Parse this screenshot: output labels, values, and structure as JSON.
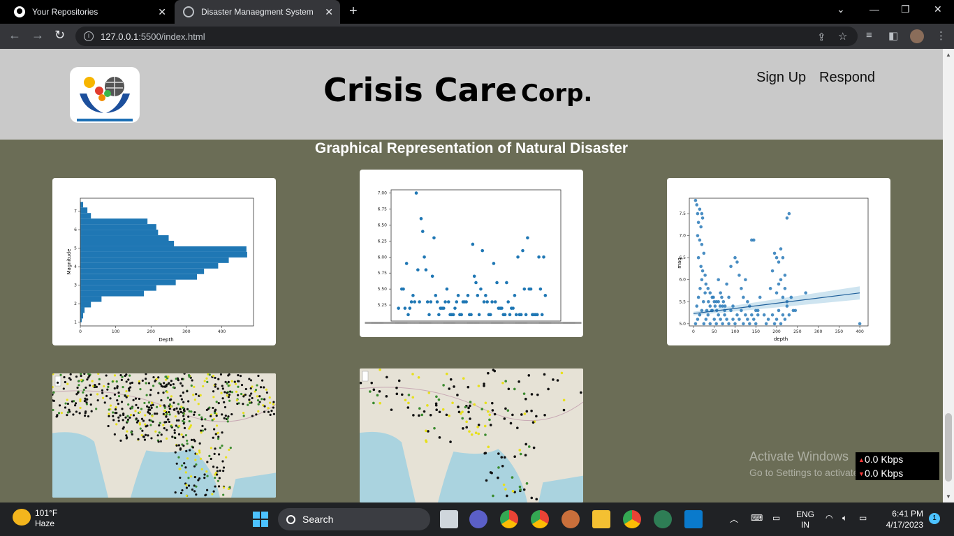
{
  "browser": {
    "tabs": [
      {
        "title": "Your Repositories"
      },
      {
        "title": "Disaster Manaegment System"
      }
    ],
    "url_host": "127.0.0.1",
    "url_rest": ":5500/index.html"
  },
  "page": {
    "brand_main": "Crisis Care",
    "brand_suffix": "Corp.",
    "nav": [
      "Sign Up",
      "Respond"
    ],
    "section_heading": "Graphical Representation of Natural Disaster"
  },
  "charts": {
    "hist": {
      "xlabel": "Depth",
      "ylabel": "Magnitude"
    },
    "reg": {
      "xlabel": "depth",
      "ylabel": "mag"
    }
  },
  "chart_data": [
    {
      "type": "bar",
      "orientation": "horizontal",
      "xlabel": "Depth",
      "ylabel": "Magnitude",
      "xticks": [
        "0",
        "100",
        "200",
        "300",
        "400"
      ],
      "yticks": [
        "1",
        "2",
        "3",
        "4",
        "5",
        "6",
        "7"
      ],
      "xlim": [
        0,
        490
      ],
      "ylim": [
        0.8,
        7.7
      ],
      "bins": [
        {
          "y0": 1.0,
          "y1": 1.2,
          "x": 4
        },
        {
          "y0": 1.2,
          "y1": 1.5,
          "x": 8
        },
        {
          "y0": 1.5,
          "y1": 1.8,
          "x": 12
        },
        {
          "y0": 1.8,
          "y1": 2.1,
          "x": 30
        },
        {
          "y0": 2.1,
          "y1": 2.4,
          "x": 60
        },
        {
          "y0": 2.4,
          "y1": 2.7,
          "x": 180
        },
        {
          "y0": 2.7,
          "y1": 3.0,
          "x": 215
        },
        {
          "y0": 3.0,
          "y1": 3.3,
          "x": 270
        },
        {
          "y0": 3.3,
          "y1": 3.6,
          "x": 330
        },
        {
          "y0": 3.6,
          "y1": 3.9,
          "x": 350
        },
        {
          "y0": 3.9,
          "y1": 4.2,
          "x": 390
        },
        {
          "y0": 4.2,
          "y1": 4.5,
          "x": 420
        },
        {
          "y0": 4.5,
          "y1": 4.8,
          "x": 472
        },
        {
          "y0": 4.8,
          "y1": 5.1,
          "x": 470
        },
        {
          "y0": 5.1,
          "y1": 5.4,
          "x": 265
        },
        {
          "y0": 5.4,
          "y1": 5.7,
          "x": 250
        },
        {
          "y0": 5.7,
          "y1": 6.0,
          "x": 220
        },
        {
          "y0": 6.0,
          "y1": 6.3,
          "x": 215
        },
        {
          "y0": 6.3,
          "y1": 6.6,
          "x": 190
        },
        {
          "y0": 6.6,
          "y1": 6.9,
          "x": 30
        },
        {
          "y0": 6.9,
          "y1": 7.2,
          "x": 20
        },
        {
          "y0": 7.2,
          "y1": 7.5,
          "x": 8
        }
      ]
    },
    {
      "type": "scatter",
      "yticks": [
        "5.25",
        "5.50",
        "5.75",
        "6.00",
        "6.25",
        "6.50",
        "6.75",
        "7.00"
      ],
      "ylim": [
        5.0,
        7.05
      ],
      "xlim": [
        0,
        100
      ],
      "points": [
        [
          2,
          5.2
        ],
        [
          4,
          5.5
        ],
        [
          5,
          5.5
        ],
        [
          6,
          5.2
        ],
        [
          7,
          5.9
        ],
        [
          8,
          5.1
        ],
        [
          9,
          5.2
        ],
        [
          10,
          5.3
        ],
        [
          11,
          5.4
        ],
        [
          12,
          5.3
        ],
        [
          13,
          7.0
        ],
        [
          14,
          5.8
        ],
        [
          15,
          5.3
        ],
        [
          16,
          6.6
        ],
        [
          17,
          6.4
        ],
        [
          18,
          6.0
        ],
        [
          19,
          5.8
        ],
        [
          20,
          5.3
        ],
        [
          21,
          5.1
        ],
        [
          22,
          5.3
        ],
        [
          23,
          5.7
        ],
        [
          24,
          6.3
        ],
        [
          25,
          5.4
        ],
        [
          26,
          5.3
        ],
        [
          27,
          5.1
        ],
        [
          28,
          5.2
        ],
        [
          29,
          5.2
        ],
        [
          30,
          5.2
        ],
        [
          31,
          5.3
        ],
        [
          32,
          5.5
        ],
        [
          33,
          5.3
        ],
        [
          34,
          5.1
        ],
        [
          35,
          5.1
        ],
        [
          36,
          5.1
        ],
        [
          37,
          5.2
        ],
        [
          38,
          5.3
        ],
        [
          39,
          5.4
        ],
        [
          40,
          5.1
        ],
        [
          41,
          5.1
        ],
        [
          42,
          5.3
        ],
        [
          43,
          5.3
        ],
        [
          44,
          5.3
        ],
        [
          45,
          5.4
        ],
        [
          46,
          5.1
        ],
        [
          47,
          5.1
        ],
        [
          48,
          6.2
        ],
        [
          49,
          5.7
        ],
        [
          50,
          5.6
        ],
        [
          51,
          5.4
        ],
        [
          52,
          5.1
        ],
        [
          53,
          5.5
        ],
        [
          54,
          6.1
        ],
        [
          55,
          5.3
        ],
        [
          56,
          5.4
        ],
        [
          57,
          5.3
        ],
        [
          58,
          5.1
        ],
        [
          59,
          5.1
        ],
        [
          60,
          5.3
        ],
        [
          61,
          5.9
        ],
        [
          62,
          5.3
        ],
        [
          63,
          5.6
        ],
        [
          64,
          5.2
        ],
        [
          65,
          5.2
        ],
        [
          66,
          5.2
        ],
        [
          67,
          5.1
        ],
        [
          68,
          5.1
        ],
        [
          69,
          5.6
        ],
        [
          70,
          5.3
        ],
        [
          71,
          5.1
        ],
        [
          72,
          5.2
        ],
        [
          73,
          5.2
        ],
        [
          74,
          5.4
        ],
        [
          75,
          5.1
        ],
        [
          76,
          6.0
        ],
        [
          77,
          5.1
        ],
        [
          78,
          5.1
        ],
        [
          79,
          6.1
        ],
        [
          80,
          5.5
        ],
        [
          81,
          5.1
        ],
        [
          82,
          6.3
        ],
        [
          83,
          5.5
        ],
        [
          84,
          5.5
        ],
        [
          85,
          5.1
        ],
        [
          86,
          5.1
        ],
        [
          87,
          5.1
        ],
        [
          88,
          5.1
        ],
        [
          89,
          6.0
        ],
        [
          90,
          5.5
        ],
        [
          91,
          5.1
        ],
        [
          92,
          6.0
        ],
        [
          93,
          5.4
        ]
      ]
    },
    {
      "type": "scatter",
      "xlabel": "depth",
      "ylabel": "mag",
      "xticks": [
        "0",
        "50",
        "100",
        "150",
        "200",
        "250",
        "300",
        "350",
        "400"
      ],
      "yticks": [
        "5.0",
        "5.5",
        "6.0",
        "6.5",
        "7.0",
        "7.5"
      ],
      "xlim": [
        -10,
        420
      ],
      "ylim": [
        4.95,
        7.85
      ],
      "regression": {
        "x0": 0,
        "y0": 5.23,
        "x1": 400,
        "y1": 5.7
      },
      "points": [
        [
          5,
          7.8
        ],
        [
          8,
          7.7
        ],
        [
          10,
          7.5
        ],
        [
          12,
          7.3
        ],
        [
          15,
          7.6
        ],
        [
          18,
          7.2
        ],
        [
          20,
          7.5
        ],
        [
          22,
          7.4
        ],
        [
          10,
          7.0
        ],
        [
          15,
          6.9
        ],
        [
          20,
          6.8
        ],
        [
          25,
          6.6
        ],
        [
          12,
          6.5
        ],
        [
          18,
          6.3
        ],
        [
          22,
          6.2
        ],
        [
          28,
          6.1
        ],
        [
          30,
          5.9
        ],
        [
          35,
          5.8
        ],
        [
          40,
          5.7
        ],
        [
          45,
          5.6
        ],
        [
          50,
          5.5
        ],
        [
          55,
          5.5
        ],
        [
          60,
          6.0
        ],
        [
          65,
          5.7
        ],
        [
          70,
          5.4
        ],
        [
          75,
          5.3
        ],
        [
          80,
          5.9
        ],
        [
          85,
          5.6
        ],
        [
          90,
          6.3
        ],
        [
          95,
          5.4
        ],
        [
          100,
          6.5
        ],
        [
          105,
          6.4
        ],
        [
          110,
          6.1
        ],
        [
          115,
          5.8
        ],
        [
          120,
          5.6
        ],
        [
          125,
          6.0
        ],
        [
          130,
          5.5
        ],
        [
          135,
          5.4
        ],
        [
          140,
          6.9
        ],
        [
          145,
          6.9
        ],
        [
          150,
          5.3
        ],
        [
          155,
          5.2
        ],
        [
          160,
          5.6
        ],
        [
          170,
          5.2
        ],
        [
          180,
          5.1
        ],
        [
          185,
          5.8
        ],
        [
          190,
          6.2
        ],
        [
          195,
          6.6
        ],
        [
          200,
          6.5
        ],
        [
          205,
          6.4
        ],
        [
          210,
          6.7
        ],
        [
          215,
          6.5
        ],
        [
          220,
          6.1
        ],
        [
          225,
          7.4
        ],
        [
          230,
          7.5
        ],
        [
          235,
          5.6
        ],
        [
          240,
          5.3
        ],
        [
          245,
          5.3
        ],
        [
          270,
          5.7
        ],
        [
          400,
          5.0
        ],
        [
          5,
          5.0
        ],
        [
          10,
          5.1
        ],
        [
          15,
          5.2
        ],
        [
          20,
          5.3
        ],
        [
          25,
          5.0
        ],
        [
          30,
          5.1
        ],
        [
          35,
          5.2
        ],
        [
          40,
          5.0
        ],
        [
          45,
          5.3
        ],
        [
          50,
          5.1
        ],
        [
          55,
          5.0
        ],
        [
          60,
          5.2
        ],
        [
          65,
          5.1
        ],
        [
          70,
          5.0
        ],
        [
          75,
          5.2
        ],
        [
          80,
          5.1
        ],
        [
          85,
          5.0
        ],
        [
          90,
          5.3
        ],
        [
          95,
          5.1
        ],
        [
          100,
          5.0
        ],
        [
          105,
          5.2
        ],
        [
          110,
          5.1
        ],
        [
          115,
          5.3
        ],
        [
          120,
          5.0
        ],
        [
          125,
          5.2
        ],
        [
          130,
          5.1
        ],
        [
          135,
          5.0
        ],
        [
          140,
          5.2
        ],
        [
          145,
          5.1
        ],
        [
          150,
          5.0
        ],
        [
          155,
          5.3
        ],
        [
          175,
          5.0
        ],
        [
          190,
          5.2
        ],
        [
          195,
          5.0
        ],
        [
          200,
          5.1
        ],
        [
          205,
          5.3
        ],
        [
          210,
          5.0
        ],
        [
          215,
          5.2
        ],
        [
          220,
          5.1
        ],
        [
          225,
          5.4
        ],
        [
          230,
          5.2
        ],
        [
          8,
          5.4
        ],
        [
          12,
          5.6
        ],
        [
          16,
          5.8
        ],
        [
          20,
          6.0
        ],
        [
          24,
          5.5
        ],
        [
          28,
          5.7
        ],
        [
          32,
          5.3
        ],
        [
          36,
          5.5
        ],
        [
          40,
          5.4
        ],
        [
          44,
          5.3
        ],
        [
          48,
          5.6
        ],
        [
          52,
          5.4
        ],
        [
          56,
          5.3
        ],
        [
          60,
          5.5
        ],
        [
          64,
          5.4
        ],
        [
          68,
          5.6
        ],
        [
          72,
          5.5
        ],
        [
          76,
          5.4
        ],
        [
          200,
          5.7
        ],
        [
          205,
          5.9
        ],
        [
          210,
          6.0
        ],
        [
          215,
          5.6
        ],
        [
          220,
          5.8
        ],
        [
          225,
          5.5
        ]
      ]
    }
  ],
  "watermark": {
    "line1": "Activate Windows",
    "line2": "Go to Settings to activate Windows."
  },
  "network": {
    "up": "0.0 Kbps",
    "down": "0.0 Kbps"
  },
  "taskbar": {
    "temp": "101°F",
    "condition": "Haze",
    "search": "Search",
    "lang1": "ENG",
    "lang2": "IN",
    "time": "6:41 PM",
    "date": "4/17/2023",
    "notif_count": "1"
  }
}
